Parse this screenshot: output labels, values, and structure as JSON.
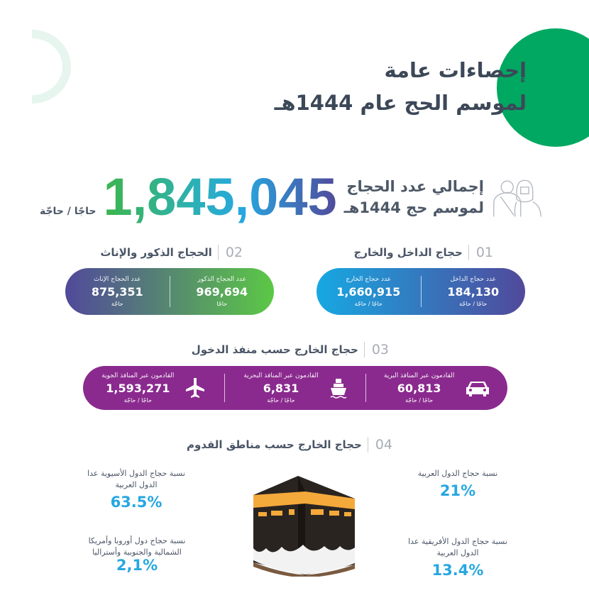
{
  "header": {
    "title_line1": "إحصاءات عامة",
    "title_line2": "لموسم الحج عام 1444هـ"
  },
  "total": {
    "label_line1": "إجمالي عدد الحجاج",
    "label_line2": "لموسم حج 1444هـ",
    "value": "1,845,045",
    "unit": "حاجًا / حاجّة"
  },
  "sections": [
    {
      "num": "01",
      "title": "حجاج الداخل والخارج",
      "items": [
        {
          "label": "عدد حجاج الداخل",
          "value": "184,130",
          "unit": "حاجًا / حاجّة"
        },
        {
          "label": "عدد حجاج الخارج",
          "value": "1,660,915",
          "unit": "حاجًا / حاجّة"
        }
      ]
    },
    {
      "num": "02",
      "title": "الحجاج الذكور والإناث",
      "items": [
        {
          "label": "عدد الحجاج الذكور",
          "value": "969,694",
          "unit": "حاجًا"
        },
        {
          "label": "عدد الحجاج الإناث",
          "value": "875,351",
          "unit": "حاجّة"
        }
      ]
    },
    {
      "num": "03",
      "title": "حجاج الخارج حسب منفذ الدخول",
      "items": [
        {
          "label": "القادمون عبر المنافذ البرية",
          "value": "60,813",
          "unit": "حاجًا / حاجّة",
          "icon": "car-icon"
        },
        {
          "label": "القادمون عبر المنافذ البحرية",
          "value": "6,831",
          "unit": "حاجًا / حاجّة",
          "icon": "ship-icon"
        },
        {
          "label": "القادمون عبر المنافذ الجوية",
          "value": "1,593,271",
          "unit": "حاجًا / حاجّة",
          "icon": "airplane-icon"
        }
      ]
    },
    {
      "num": "04",
      "title": "حجاج الخارج حسب مناطق القدوم",
      "items": [
        {
          "label": "نسبة حجاج الدول العربية",
          "value": "21%"
        },
        {
          "label": "نسبة حجاج الدول الأفريقية عدا الدول العربية",
          "value": "13.4%"
        },
        {
          "label": "نسبة حجاج الدول الأسيوية عدا الدول العربية",
          "value": "63.5%"
        },
        {
          "label": "نسبة حجاج دول أوروبا وأمريكا الشمالية والجنوبية وأستراليا",
          "value": "2,1%"
        }
      ]
    }
  ],
  "colors": {
    "green": "#01a862",
    "blue": "#27a7e0",
    "purple": "#8a2a8e",
    "indigo": "#51499b"
  }
}
